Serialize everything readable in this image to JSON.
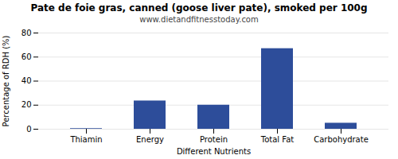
{
  "chart_data": {
    "type": "bar",
    "title": "Pate de foie gras, canned (goose liver pate), smoked per 100g",
    "subtitle": "www.dietandfitnesstoday.com",
    "categories": [
      "Thiamin",
      "Energy",
      "Protein",
      "Total Fat",
      "Carbohydrate"
    ],
    "values": [
      0.5,
      23.5,
      20.0,
      67.0,
      5.0
    ],
    "color": "#2d4d9a",
    "xlabel": "Different Nutrients",
    "ylabel": "Percentage of RDH (%)",
    "ylim": [
      0,
      80
    ],
    "yticks": [
      0,
      20,
      40,
      60,
      80
    ],
    "grid": true
  }
}
